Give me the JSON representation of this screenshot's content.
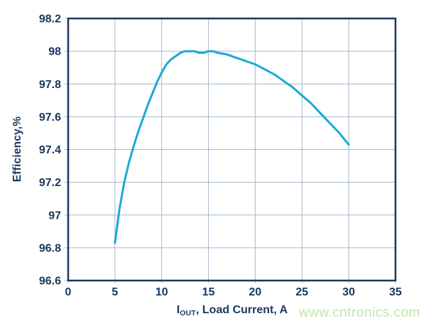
{
  "watermark": "www.cntronics.com",
  "chart_data": {
    "type": "line",
    "title": "",
    "xlabel": "IOUT, Load Current, A",
    "xlabel_parts": {
      "symbol": "I",
      "subscript": "OUT",
      "rest": ", Load Current, A"
    },
    "ylabel": "Efficiency,%",
    "xlim": [
      0,
      35
    ],
    "ylim": [
      96.6,
      98.2
    ],
    "xticks": [
      0,
      5,
      10,
      15,
      20,
      25,
      30,
      35
    ],
    "yticks": [
      96.6,
      96.8,
      97,
      97.2,
      97.4,
      97.6,
      97.8,
      98,
      98.2
    ],
    "grid": true,
    "legend": false,
    "colors": {
      "text": "#17375e",
      "frame": "#17375e",
      "grid": "#a5b6c9",
      "curve": "#1ca8d6",
      "watermark": "#bfe5ab"
    },
    "series": [
      {
        "name": "Efficiency",
        "color": "#1ca8d6",
        "points": [
          [
            5,
            96.83
          ],
          [
            5.5,
            97.04
          ],
          [
            6,
            97.2
          ],
          [
            6.5,
            97.32
          ],
          [
            7,
            97.42
          ],
          [
            7.5,
            97.51
          ],
          [
            8,
            97.59
          ],
          [
            8.5,
            97.67
          ],
          [
            9,
            97.74
          ],
          [
            9.5,
            97.81
          ],
          [
            10,
            97.87
          ],
          [
            10.5,
            97.92
          ],
          [
            11,
            97.95
          ],
          [
            11.5,
            97.97
          ],
          [
            12,
            97.99
          ],
          [
            12.5,
            98.0
          ],
          [
            13,
            98.0
          ],
          [
            13.5,
            98.0
          ],
          [
            14,
            97.99
          ],
          [
            14.5,
            97.99
          ],
          [
            15,
            98.0
          ],
          [
            15.5,
            98.0
          ],
          [
            16,
            97.99
          ],
          [
            17,
            97.98
          ],
          [
            18,
            97.96
          ],
          [
            19,
            97.94
          ],
          [
            20,
            97.92
          ],
          [
            21,
            97.89
          ],
          [
            22,
            97.86
          ],
          [
            23,
            97.82
          ],
          [
            24,
            97.78
          ],
          [
            25,
            97.73
          ],
          [
            26,
            97.68
          ],
          [
            27,
            97.62
          ],
          [
            28,
            97.56
          ],
          [
            29,
            97.5
          ],
          [
            30,
            97.43
          ]
        ]
      }
    ]
  }
}
